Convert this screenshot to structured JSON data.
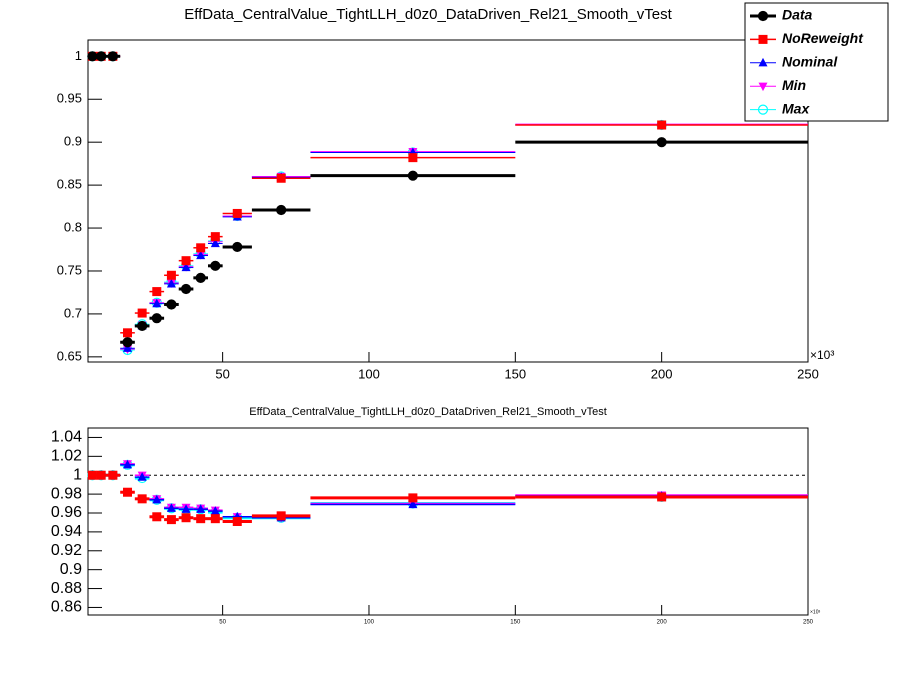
{
  "chart_data": [
    {
      "type": "errorbar",
      "title": "EffData_CentralValue_TightLLH_d0z0_DataDriven_Rel21_Smooth_vTest",
      "x_multiplier": "×10³",
      "x": [
        5.5,
        8.5,
        12.5,
        17.5,
        22.5,
        27.5,
        32.5,
        37.5,
        42.5,
        47.5,
        55,
        70,
        115,
        200
      ],
      "bins": [
        4,
        7,
        10,
        15,
        20,
        25,
        30,
        35,
        40,
        45,
        50,
        60,
        80,
        150,
        250
      ],
      "xlim": [
        4,
        250
      ],
      "xticks": [
        50,
        100,
        150,
        200,
        250
      ],
      "ylim": [
        0.644,
        1.019
      ],
      "yticks": [
        0.65,
        0.7,
        0.75,
        0.8,
        0.85,
        0.9,
        0.95,
        1
      ],
      "legend": "top-right",
      "series": [
        {
          "name": "Data",
          "color": "#000000",
          "marker": "circle",
          "width": 3,
          "values": [
            1,
            1,
            1,
            0.667,
            0.686,
            0.695,
            0.711,
            0.729,
            0.742,
            0.756,
            0.778,
            0.821,
            0.861,
            0.9
          ]
        },
        {
          "name": "NoReweight",
          "color": "#ff0000",
          "marker": "square",
          "width": 1.5,
          "values": [
            1,
            1,
            1,
            0.678,
            0.701,
            0.726,
            0.745,
            0.762,
            0.777,
            0.79,
            0.817,
            0.858,
            0.882,
            0.92
          ]
        },
        {
          "name": "Nominal",
          "color": "#0000ff",
          "marker": "triangle-up",
          "width": 1,
          "values": [
            1,
            1,
            1,
            0.66,
            0.686,
            0.712,
            0.735,
            0.754,
            0.768,
            0.782,
            0.813,
            0.859,
            0.888,
            0.92
          ]
        },
        {
          "name": "Min",
          "color": "#ff00ff",
          "marker": "triangle-down",
          "width": 1,
          "values": [
            1,
            1,
            1,
            0.659,
            0.687,
            0.713,
            0.736,
            0.755,
            0.769,
            0.784,
            0.814,
            0.86,
            0.889,
            0.921
          ]
        },
        {
          "name": "Max",
          "color": "#00ffff",
          "marker": "circle-open",
          "width": 1,
          "values": [
            1,
            1,
            1,
            0.658,
            0.688,
            0.713,
            0.737,
            0.756,
            0.77,
            0.785,
            0.814,
            0.86,
            0.888,
            0.92
          ]
        }
      ]
    },
    {
      "type": "errorbar",
      "title": "EffData_CentralValue_TightLLH_d0z0_DataDriven_Rel21_Smooth_vTest",
      "x_multiplier": "×10³",
      "x": [
        5.5,
        8.5,
        12.5,
        17.5,
        22.5,
        27.5,
        32.5,
        37.5,
        42.5,
        47.5,
        55,
        70,
        115,
        200
      ],
      "bins": [
        4,
        7,
        10,
        15,
        20,
        25,
        30,
        35,
        40,
        45,
        50,
        60,
        80,
        150,
        250
      ],
      "xlim": [
        4,
        250
      ],
      "xticks": [
        50,
        100,
        150,
        200,
        250
      ],
      "ylim": [
        0.852,
        1.05
      ],
      "yticks": [
        0.86,
        0.88,
        0.9,
        0.92,
        0.94,
        0.96,
        0.98,
        1,
        1.02,
        1.04
      ],
      "reference_line": 1,
      "series": [
        {
          "color": "#ff0000",
          "marker": "square",
          "width": 3,
          "values": [
            1,
            1,
            1,
            0.982,
            0.975,
            0.956,
            0.953,
            0.955,
            0.954,
            0.954,
            0.951,
            0.957,
            0.976,
            0.977
          ]
        },
        {
          "color": "#0000ff",
          "marker": "triangle-up",
          "width": 1.5,
          "values": [
            1,
            1,
            1,
            1.011,
            0.998,
            0.974,
            0.965,
            0.964,
            0.964,
            0.962,
            0.956,
            0.955,
            0.969,
            0.978
          ]
        },
        {
          "color": "#ff00ff",
          "marker": "triangle-down",
          "width": 1.5,
          "values": [
            1,
            1,
            1,
            1.012,
            1.0,
            0.975,
            0.966,
            0.966,
            0.965,
            0.963,
            0.956,
            0.955,
            0.97,
            0.979
          ]
        },
        {
          "color": "#00ffff",
          "marker": "circle-open",
          "width": 3,
          "values": [
            1,
            1,
            1,
            1.011,
            0.997,
            0.974,
            0.965,
            0.964,
            0.964,
            0.961,
            0.955,
            0.955,
            0.97,
            0.977
          ]
        }
      ]
    }
  ]
}
